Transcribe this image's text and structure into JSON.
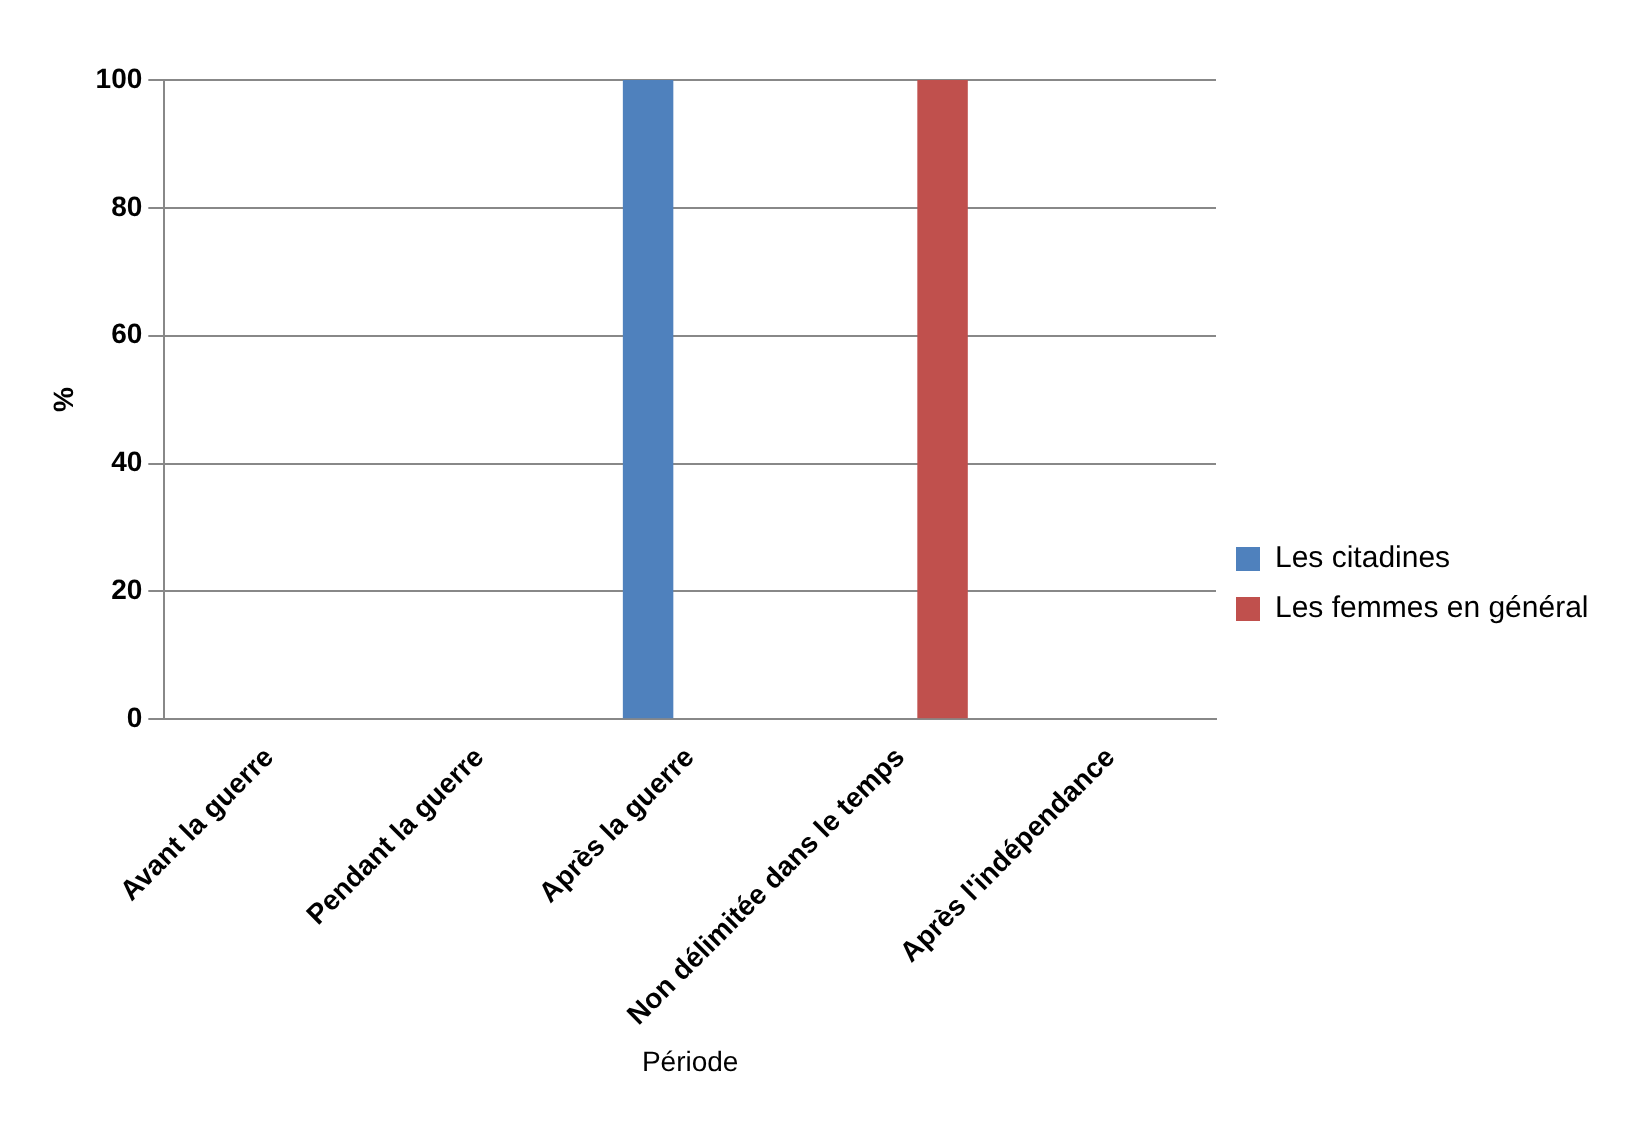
{
  "chart_data": {
    "type": "bar",
    "xlabel": "Période",
    "ylabel": "%",
    "categories": [
      "Avant la guerre",
      "Pendant la guerre",
      "Après la guerre",
      "Non délimitée dans le temps",
      "Après l'indépendance"
    ],
    "series": [
      {
        "name": "Les citadines",
        "color": "#4f81bd",
        "values": [
          0,
          0,
          100,
          0,
          0
        ]
      },
      {
        "name": "Les femmes en général",
        "color": "#c0504d",
        "values": [
          0,
          0,
          0,
          100,
          0
        ]
      }
    ],
    "ylim": [
      0,
      100
    ],
    "yticks": [
      0,
      20,
      40,
      60,
      80,
      100
    ],
    "grid": "y",
    "legend": "right"
  }
}
